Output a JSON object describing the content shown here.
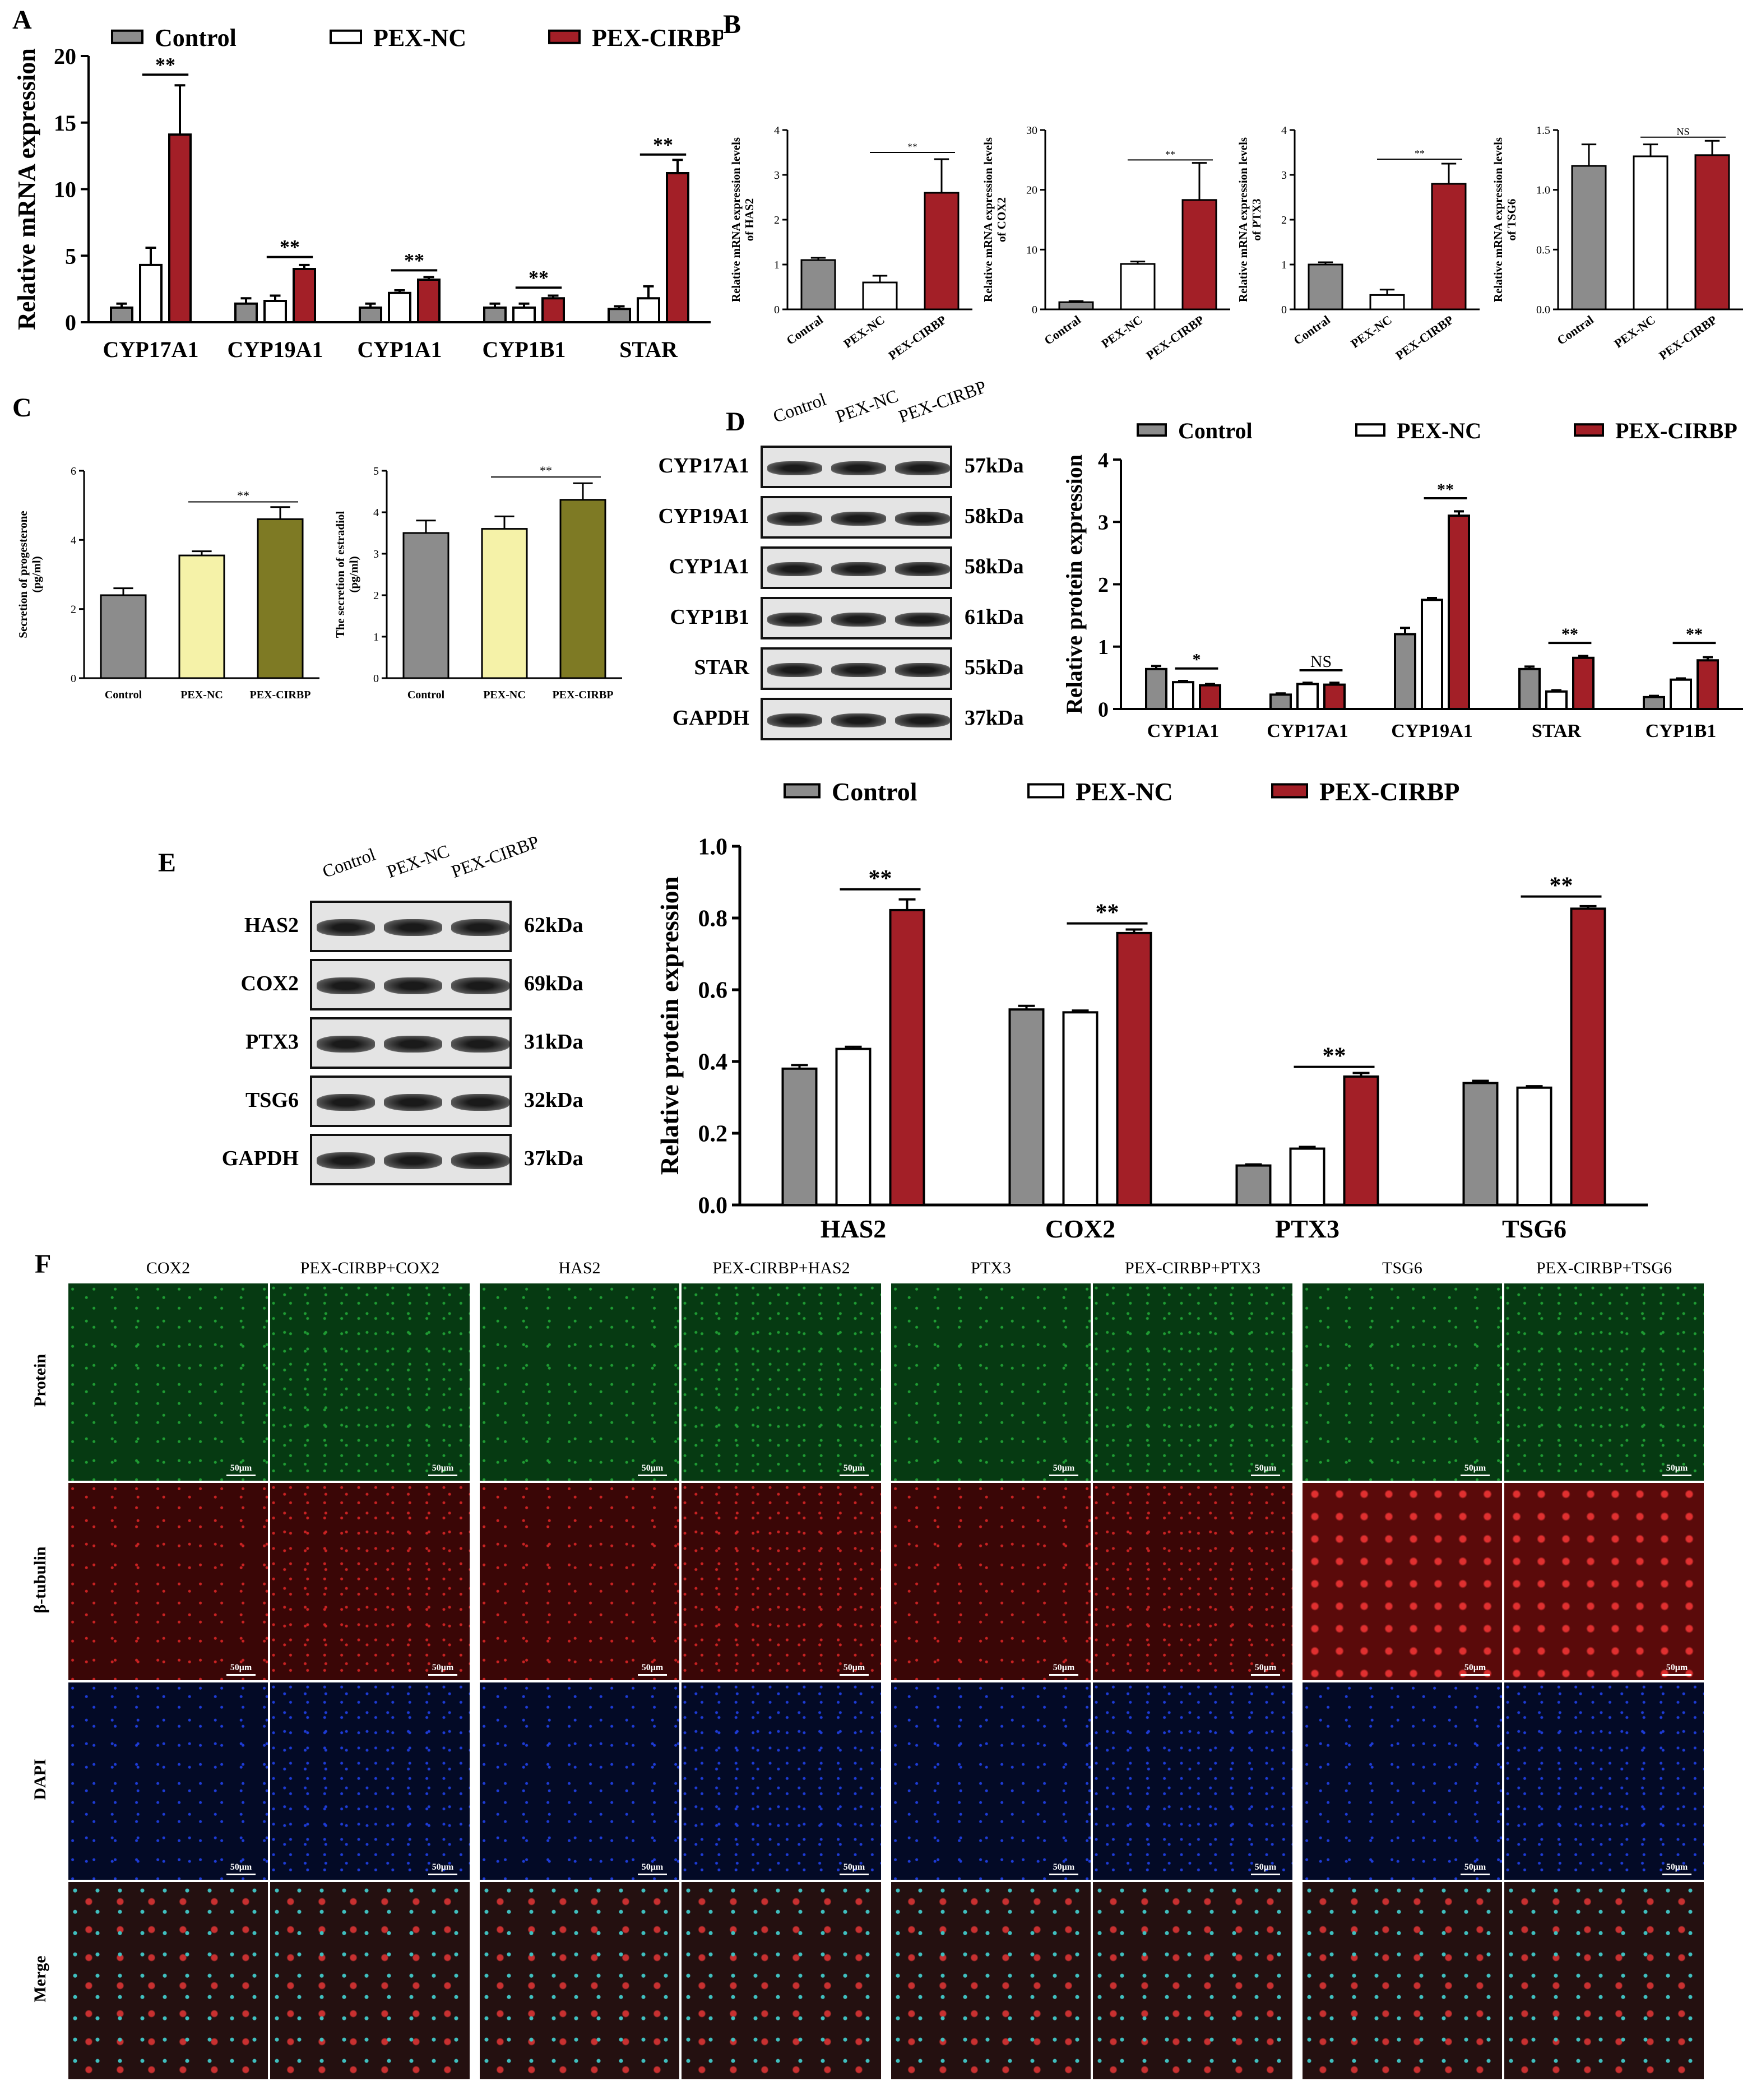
{
  "panels": {
    "A": "A",
    "B": "B",
    "C": "C",
    "D": "D",
    "E": "E",
    "F": "F"
  },
  "colors": {
    "control": "#8c8c8c",
    "pexnc": "#ffffff",
    "pexcirbp": "#a31f27",
    "c_pexnc": "#f5f2a8",
    "c_pexcirbp": "#7e7a24"
  },
  "legend": {
    "control": "Control",
    "pexnc": "PEX-NC",
    "pexcirbp": "PEX-CIRBP"
  },
  "chart_data": [
    {
      "id": "A",
      "type": "bar",
      "ylabel": "Relative mRNA expression",
      "ylim": [
        0,
        20
      ],
      "yticks": [
        0,
        5,
        10,
        15,
        20
      ],
      "categories": [
        "CYP17A1",
        "CYP19A1",
        "CYP1A1",
        "CYP1B1",
        "STAR"
      ],
      "series": [
        {
          "name": "Control",
          "values": [
            1.1,
            1.4,
            1.1,
            1.1,
            1.0
          ],
          "err": [
            0.3,
            0.4,
            0.3,
            0.3,
            0.2
          ]
        },
        {
          "name": "PEX-NC",
          "values": [
            4.3,
            1.6,
            2.2,
            1.1,
            1.8
          ],
          "err": [
            1.3,
            0.4,
            0.2,
            0.3,
            0.9
          ]
        },
        {
          "name": "PEX-CIRBP",
          "values": [
            14.1,
            4.0,
            3.2,
            1.8,
            11.2
          ],
          "err": [
            3.7,
            0.3,
            0.2,
            0.2,
            1.0
          ]
        }
      ],
      "sig": [
        {
          "cat": 0,
          "from": 1,
          "to": 2,
          "y": 18.6,
          "text": "**"
        },
        {
          "cat": 1,
          "from": 1,
          "to": 2,
          "y": 4.9,
          "text": "**"
        },
        {
          "cat": 2,
          "from": 1,
          "to": 2,
          "y": 3.9,
          "text": "**"
        },
        {
          "cat": 3,
          "from": 1,
          "to": 2,
          "y": 2.6,
          "text": "**"
        },
        {
          "cat": 4,
          "from": 1,
          "to": 2,
          "y": 12.6,
          "text": "**"
        }
      ]
    },
    {
      "id": "B1",
      "type": "bar",
      "ylabel": "Relative mRNA expression levels of HAS2",
      "ylim": [
        0,
        4
      ],
      "yticks": [
        0,
        1,
        2,
        3,
        4
      ],
      "categories": [
        "Contral",
        "PEX-NC",
        "PEX-CIRBP"
      ],
      "values": [
        1.1,
        0.6,
        2.6
      ],
      "err": [
        0.05,
        0.15,
        0.75
      ],
      "sig": [
        {
          "from": 1,
          "to": 2,
          "y": 3.5,
          "text": "**"
        }
      ]
    },
    {
      "id": "B2",
      "type": "bar",
      "ylabel": "Relative mRNA expression levels of COX2",
      "ylim": [
        0,
        30
      ],
      "yticks": [
        0,
        10,
        20,
        30
      ],
      "categories": [
        "Contral",
        "PEX-NC",
        "PEX-CIRBP"
      ],
      "values": [
        1.2,
        7.6,
        18.3
      ],
      "err": [
        0.2,
        0.4,
        6.2
      ],
      "sig": [
        {
          "from": 1,
          "to": 2,
          "y": 25,
          "text": "**"
        }
      ]
    },
    {
      "id": "B3",
      "type": "bar",
      "ylabel": "Relative mRNA expression levels of PTX3",
      "ylim": [
        0,
        4
      ],
      "yticks": [
        0,
        1,
        2,
        3,
        4
      ],
      "categories": [
        "Contral",
        "PEX-NC",
        "PEX-CIRBP"
      ],
      "values": [
        1.0,
        0.32,
        2.8
      ],
      "err": [
        0.05,
        0.12,
        0.45
      ],
      "sig": [
        {
          "from": 1,
          "to": 2,
          "y": 3.35,
          "text": "**"
        }
      ]
    },
    {
      "id": "B4",
      "type": "bar",
      "ylabel": "Relative mRNA expression levels of TSG6",
      "ylim": [
        0,
        1.5
      ],
      "yticks": [
        0.0,
        0.5,
        1.0,
        1.5
      ],
      "categories": [
        "Contral",
        "PEX-NC",
        "PEX-CIRBP"
      ],
      "values": [
        1.2,
        1.28,
        1.29
      ],
      "err": [
        0.18,
        0.1,
        0.12
      ],
      "sig": [
        {
          "from": 1,
          "to": 2,
          "y": 1.44,
          "text": "NS"
        }
      ]
    },
    {
      "id": "C1",
      "type": "bar",
      "ylabel": "Secretion of progesterone (pg/ml)",
      "ylim": [
        0,
        6
      ],
      "yticks": [
        0,
        2,
        4,
        6
      ],
      "categories": [
        "Control",
        "PEX-NC",
        "PEX-CIRBP"
      ],
      "values": [
        2.4,
        3.55,
        4.6
      ],
      "err": [
        0.2,
        0.12,
        0.35
      ],
      "sig": [
        {
          "from": 1,
          "to": 2,
          "y": 5.1,
          "text": "**"
        }
      ]
    },
    {
      "id": "C2",
      "type": "bar",
      "ylabel": "The secretion of estradiol (pg/ml)",
      "ylim": [
        0,
        5
      ],
      "yticks": [
        0,
        1,
        2,
        3,
        4,
        5
      ],
      "categories": [
        "Control",
        "PEX-NC",
        "PEX-CIRBP"
      ],
      "values": [
        3.5,
        3.6,
        4.3
      ],
      "err": [
        0.3,
        0.3,
        0.4
      ],
      "sig": [
        {
          "from": 1,
          "to": 2,
          "y": 4.85,
          "text": "**"
        }
      ]
    },
    {
      "id": "D",
      "type": "bar",
      "ylabel": "Relative protein expression",
      "ylim": [
        0,
        4
      ],
      "yticks": [
        0,
        1,
        2,
        3,
        4
      ],
      "categories": [
        "CYP1A1",
        "CYP17A1",
        "CYP19A1",
        "STAR",
        "CYP1B1"
      ],
      "series": [
        {
          "name": "Control",
          "values": [
            0.64,
            0.23,
            1.2,
            0.64,
            0.19
          ],
          "err": [
            0.05,
            0.02,
            0.1,
            0.04,
            0.02
          ]
        },
        {
          "name": "PEX-NC",
          "values": [
            0.43,
            0.4,
            1.75,
            0.28,
            0.47
          ],
          "err": [
            0.02,
            0.02,
            0.03,
            0.02,
            0.02
          ]
        },
        {
          "name": "PEX-CIRBP",
          "values": [
            0.38,
            0.39,
            3.1,
            0.82,
            0.78
          ],
          "err": [
            0.02,
            0.03,
            0.07,
            0.03,
            0.05
          ]
        }
      ],
      "sig": [
        {
          "cat": 0,
          "from": 1,
          "to": 2,
          "y": 0.65,
          "text": "*"
        },
        {
          "cat": 1,
          "from": 1,
          "to": 2,
          "y": 0.62,
          "text": "NS"
        },
        {
          "cat": 2,
          "from": 1,
          "to": 2,
          "y": 3.38,
          "text": "**"
        },
        {
          "cat": 3,
          "from": 1,
          "to": 2,
          "y": 1.06,
          "text": "**"
        },
        {
          "cat": 4,
          "from": 1,
          "to": 2,
          "y": 1.06,
          "text": "**"
        }
      ]
    },
    {
      "id": "E",
      "type": "bar",
      "ylabel": "Relative protein expression",
      "ylim": [
        0,
        1.0
      ],
      "yticks": [
        0.0,
        0.2,
        0.4,
        0.6,
        0.8,
        1.0
      ],
      "categories": [
        "HAS2",
        "COX2",
        "PTX3",
        "TSG6"
      ],
      "series": [
        {
          "name": "Control",
          "values": [
            0.38,
            0.545,
            0.11,
            0.34
          ],
          "err": [
            0.01,
            0.01,
            0.003,
            0.006
          ]
        },
        {
          "name": "PEX-NC",
          "values": [
            0.435,
            0.537,
            0.157,
            0.327
          ],
          "err": [
            0.006,
            0.005,
            0.005,
            0.004
          ]
        },
        {
          "name": "PEX-CIRBP",
          "values": [
            0.822,
            0.758,
            0.358,
            0.826
          ],
          "err": [
            0.03,
            0.01,
            0.01,
            0.007
          ]
        }
      ],
      "sig": [
        {
          "cat": 0,
          "from": 1,
          "to": 2,
          "y": 0.88,
          "text": "**"
        },
        {
          "cat": 1,
          "from": 1,
          "to": 2,
          "y": 0.785,
          "text": "**"
        },
        {
          "cat": 2,
          "from": 1,
          "to": 2,
          "y": 0.385,
          "text": "**"
        },
        {
          "cat": 3,
          "from": 1,
          "to": 2,
          "y": 0.86,
          "text": "**"
        }
      ]
    }
  ],
  "blotD": {
    "columns": [
      "Control",
      "PEX-NC",
      "PEX-CIRBP"
    ],
    "rows": [
      {
        "label": "CYP17A1",
        "kda": "57kDa"
      },
      {
        "label": "CYP19A1",
        "kda": "58kDa"
      },
      {
        "label": "CYP1A1",
        "kda": "58kDa"
      },
      {
        "label": "CYP1B1",
        "kda": "61kDa"
      },
      {
        "label": "STAR",
        "kda": "55kDa"
      },
      {
        "label": "GAPDH",
        "kda": "37kDa"
      }
    ]
  },
  "blotE": {
    "columns": [
      "Control",
      "PEX-NC",
      "PEX-CIRBP"
    ],
    "rows": [
      {
        "label": "HAS2",
        "kda": "62kDa"
      },
      {
        "label": "COX2",
        "kda": "69kDa"
      },
      {
        "label": "PTX3",
        "kda": "31kDa"
      },
      {
        "label": "TSG6",
        "kda": "32kDa"
      },
      {
        "label": "GAPDH",
        "kda": "37kDa"
      }
    ]
  },
  "panelF": {
    "columns": [
      "COX2",
      "PEX-CIRBP+COX2",
      "HAS2",
      "PEX-CIRBP+HAS2",
      "PTX3",
      "PEX-CIRBP+PTX3",
      "TSG6",
      "PEX-CIRBP+TSG6"
    ],
    "rows": [
      "Protein",
      "β-tubulin",
      "DAPI",
      "Merge"
    ],
    "scale": "50μm"
  }
}
